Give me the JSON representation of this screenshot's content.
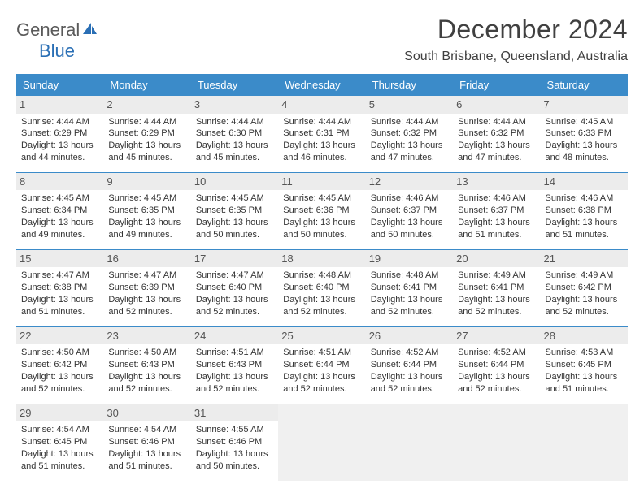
{
  "brand": {
    "part1": "General",
    "part2": "Blue"
  },
  "title": "December 2024",
  "location": "South Brisbane, Queensland, Australia",
  "colors": {
    "header_bg": "#3b8bc9",
    "header_text": "#ffffff",
    "border": "#3b8bc9",
    "brand_accent": "#2a6fb5",
    "brand_gray": "#5a5a5a",
    "daynum_bg": "#ececec",
    "empty_bg": "#f0f0f0"
  },
  "day_names": [
    "Sunday",
    "Monday",
    "Tuesday",
    "Wednesday",
    "Thursday",
    "Friday",
    "Saturday"
  ],
  "weeks": [
    [
      {
        "n": "1",
        "sr": "4:44 AM",
        "ss": "6:29 PM",
        "dl": "13 hours and 44 minutes."
      },
      {
        "n": "2",
        "sr": "4:44 AM",
        "ss": "6:29 PM",
        "dl": "13 hours and 45 minutes."
      },
      {
        "n": "3",
        "sr": "4:44 AM",
        "ss": "6:30 PM",
        "dl": "13 hours and 45 minutes."
      },
      {
        "n": "4",
        "sr": "4:44 AM",
        "ss": "6:31 PM",
        "dl": "13 hours and 46 minutes."
      },
      {
        "n": "5",
        "sr": "4:44 AM",
        "ss": "6:32 PM",
        "dl": "13 hours and 47 minutes."
      },
      {
        "n": "6",
        "sr": "4:44 AM",
        "ss": "6:32 PM",
        "dl": "13 hours and 47 minutes."
      },
      {
        "n": "7",
        "sr": "4:45 AM",
        "ss": "6:33 PM",
        "dl": "13 hours and 48 minutes."
      }
    ],
    [
      {
        "n": "8",
        "sr": "4:45 AM",
        "ss": "6:34 PM",
        "dl": "13 hours and 49 minutes."
      },
      {
        "n": "9",
        "sr": "4:45 AM",
        "ss": "6:35 PM",
        "dl": "13 hours and 49 minutes."
      },
      {
        "n": "10",
        "sr": "4:45 AM",
        "ss": "6:35 PM",
        "dl": "13 hours and 50 minutes."
      },
      {
        "n": "11",
        "sr": "4:45 AM",
        "ss": "6:36 PM",
        "dl": "13 hours and 50 minutes."
      },
      {
        "n": "12",
        "sr": "4:46 AM",
        "ss": "6:37 PM",
        "dl": "13 hours and 50 minutes."
      },
      {
        "n": "13",
        "sr": "4:46 AM",
        "ss": "6:37 PM",
        "dl": "13 hours and 51 minutes."
      },
      {
        "n": "14",
        "sr": "4:46 AM",
        "ss": "6:38 PM",
        "dl": "13 hours and 51 minutes."
      }
    ],
    [
      {
        "n": "15",
        "sr": "4:47 AM",
        "ss": "6:38 PM",
        "dl": "13 hours and 51 minutes."
      },
      {
        "n": "16",
        "sr": "4:47 AM",
        "ss": "6:39 PM",
        "dl": "13 hours and 52 minutes."
      },
      {
        "n": "17",
        "sr": "4:47 AM",
        "ss": "6:40 PM",
        "dl": "13 hours and 52 minutes."
      },
      {
        "n": "18",
        "sr": "4:48 AM",
        "ss": "6:40 PM",
        "dl": "13 hours and 52 minutes."
      },
      {
        "n": "19",
        "sr": "4:48 AM",
        "ss": "6:41 PM",
        "dl": "13 hours and 52 minutes."
      },
      {
        "n": "20",
        "sr": "4:49 AM",
        "ss": "6:41 PM",
        "dl": "13 hours and 52 minutes."
      },
      {
        "n": "21",
        "sr": "4:49 AM",
        "ss": "6:42 PM",
        "dl": "13 hours and 52 minutes."
      }
    ],
    [
      {
        "n": "22",
        "sr": "4:50 AM",
        "ss": "6:42 PM",
        "dl": "13 hours and 52 minutes."
      },
      {
        "n": "23",
        "sr": "4:50 AM",
        "ss": "6:43 PM",
        "dl": "13 hours and 52 minutes."
      },
      {
        "n": "24",
        "sr": "4:51 AM",
        "ss": "6:43 PM",
        "dl": "13 hours and 52 minutes."
      },
      {
        "n": "25",
        "sr": "4:51 AM",
        "ss": "6:44 PM",
        "dl": "13 hours and 52 minutes."
      },
      {
        "n": "26",
        "sr": "4:52 AM",
        "ss": "6:44 PM",
        "dl": "13 hours and 52 minutes."
      },
      {
        "n": "27",
        "sr": "4:52 AM",
        "ss": "6:44 PM",
        "dl": "13 hours and 52 minutes."
      },
      {
        "n": "28",
        "sr": "4:53 AM",
        "ss": "6:45 PM",
        "dl": "13 hours and 51 minutes."
      }
    ],
    [
      {
        "n": "29",
        "sr": "4:54 AM",
        "ss": "6:45 PM",
        "dl": "13 hours and 51 minutes."
      },
      {
        "n": "30",
        "sr": "4:54 AM",
        "ss": "6:46 PM",
        "dl": "13 hours and 51 minutes."
      },
      {
        "n": "31",
        "sr": "4:55 AM",
        "ss": "6:46 PM",
        "dl": "13 hours and 50 minutes."
      },
      null,
      null,
      null,
      null
    ]
  ],
  "labels": {
    "sunrise": "Sunrise:",
    "sunset": "Sunset:",
    "daylight": "Daylight:"
  }
}
